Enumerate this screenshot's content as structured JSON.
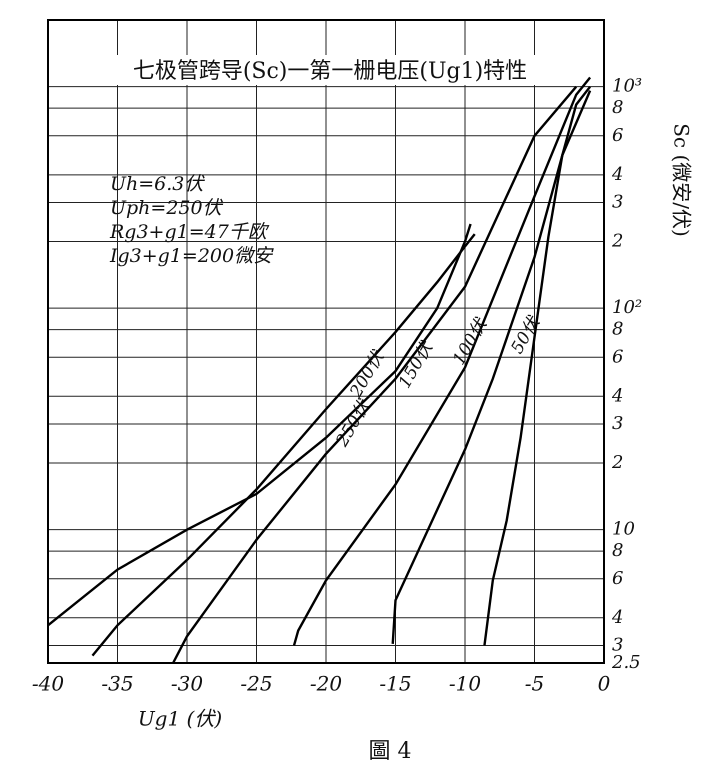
{
  "chart_data": {
    "type": "line",
    "title": "七极管跨导(Sc)一第一栅电压(Ug1)特性",
    "x_label": "Ug1 (伏)",
    "y_label": "Sc (微安/伏)",
    "caption": "圖 4",
    "annotations": [
      "Uh=6.3伏",
      "Uph=250伏",
      "Rg3+g1=47千欧",
      "Ig3+g1=200微安"
    ],
    "log_y": true,
    "grid": true,
    "xlim": [
      -40,
      0
    ],
    "xticks": [
      -40,
      -35,
      -30,
      -25,
      -20,
      -15,
      -10,
      -5,
      0
    ],
    "ylim": [
      2.5,
      2000
    ],
    "yticks": [
      2.5,
      3,
      4,
      6,
      8,
      10,
      {
        "value": 20,
        "label": "2"
      },
      {
        "value": 30,
        "label": "3"
      },
      {
        "value": 40,
        "label": "4"
      },
      {
        "value": 60,
        "label": "6"
      },
      {
        "value": 80,
        "label": "8"
      },
      {
        "value": 100,
        "label": "10²"
      },
      {
        "value": 200,
        "label": "2"
      },
      {
        "value": 300,
        "label": "3"
      },
      {
        "value": 400,
        "label": "4"
      },
      {
        "value": 600,
        "label": "6"
      },
      {
        "value": 800,
        "label": "8"
      },
      {
        "value": 1000,
        "label": "10³"
      }
    ],
    "series": [
      {
        "name": "250伏",
        "color": "#000000",
        "x": [
          -40,
          -35,
          -30,
          -25,
          -20,
          -15,
          -12,
          -10,
          -9.6
        ],
        "values": [
          3.7,
          6.6,
          10,
          14.5,
          26,
          52,
          100,
          200,
          240
        ]
      },
      {
        "name": "200伏",
        "color": "#000000",
        "x": [
          -36.8,
          -35,
          -30,
          -25,
          -20,
          -15,
          -12,
          -10,
          -9.3
        ],
        "values": [
          2.7,
          3.7,
          7.3,
          15.2,
          35,
          78,
          131,
          190,
          216
        ]
      },
      {
        "name": "150伏",
        "color": "#000000",
        "x": [
          -31,
          -30,
          -25,
          -20,
          -15,
          -10,
          -5,
          -2
        ],
        "values": [
          2.5,
          3.3,
          9,
          22,
          48,
          125,
          600,
          1000
        ]
      },
      {
        "name": "100伏",
        "color": "#000000",
        "x": [
          -22.3,
          -22,
          -20,
          -15,
          -10,
          -5,
          -2,
          -1
        ],
        "values": [
          3,
          3.5,
          5.9,
          16,
          54,
          320,
          920,
          1100
        ]
      },
      {
        "name": "50伏",
        "color": "#000000",
        "x": [
          -15.2,
          -15,
          -12,
          -10,
          -8,
          -5,
          -3,
          -1
        ],
        "values": [
          3.05,
          4.8,
          12.3,
          23,
          48,
          170,
          490,
          960
        ]
      },
      {
        "name": "50伏",
        "color": "#000000",
        "x": [
          -8.6,
          -8,
          -7,
          -6,
          -5,
          -4,
          -3,
          -2,
          -1
        ],
        "values": [
          3,
          5.9,
          11,
          26,
          74,
          210,
          490,
          830,
          1000
        ]
      }
    ]
  }
}
